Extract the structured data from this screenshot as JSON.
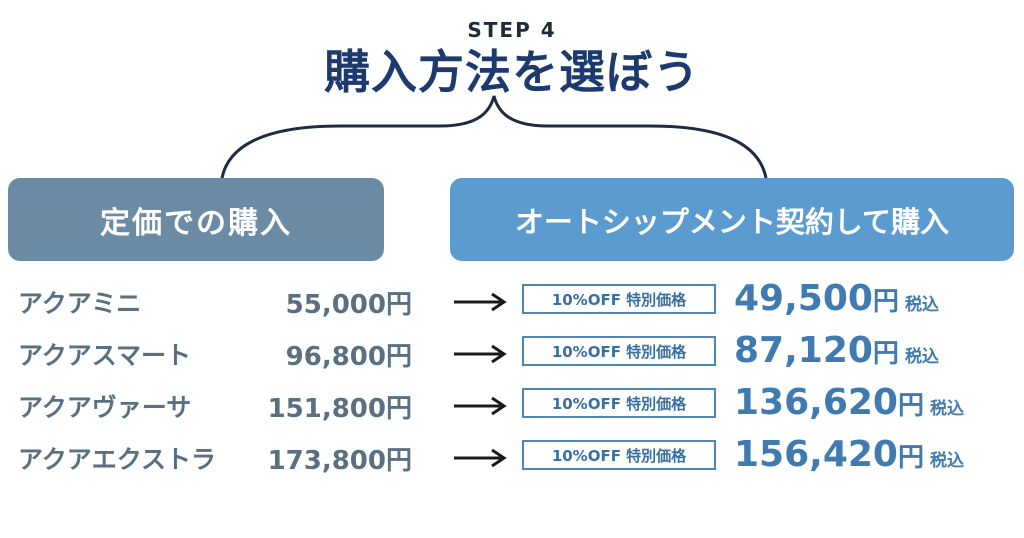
{
  "header": {
    "step": "STEP 4",
    "title": "購入方法を選ぼう"
  },
  "options": {
    "regular": "定価での購入",
    "subscription": "オートシップメント契約して購入"
  },
  "rows": [
    {
      "product": "アクアミニ",
      "price": "55,000円",
      "badge": "10%OFF 特別価格",
      "sale_price": "49,500",
      "unit": "円",
      "tax": "税込"
    },
    {
      "product": "アクアスマート",
      "price": "96,800円",
      "badge": "10%OFF 特別価格",
      "sale_price": "87,120",
      "unit": "円",
      "tax": "税込"
    },
    {
      "product": "アクアヴァーサ",
      "price": "151,800円",
      "badge": "10%OFF 特別価格",
      "sale_price": "136,620",
      "unit": "円",
      "tax": "税込"
    },
    {
      "product": "アクアエクストラ",
      "price": "173,800円",
      "badge": "10%OFF 特別価格",
      "sale_price": "156,420",
      "unit": "円",
      "tax": "税込"
    }
  ],
  "colors": {
    "title": "#1c3a6e",
    "regular_pill": "#6b8ba4",
    "subscription_pill": "#5b9bd0",
    "sale_text": "#3f7bb0"
  }
}
